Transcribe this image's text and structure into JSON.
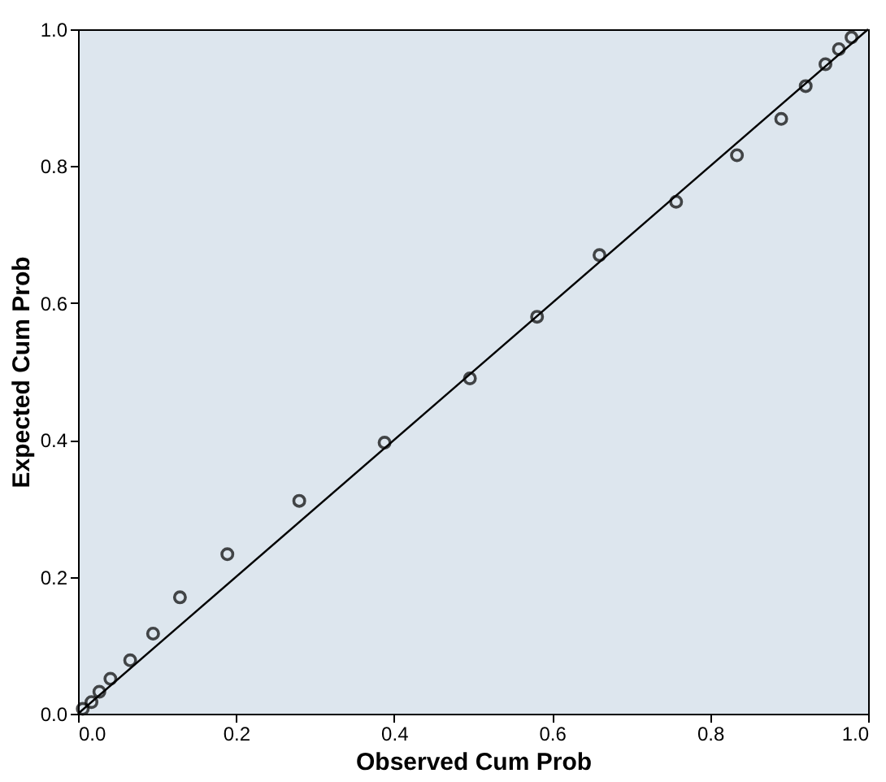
{
  "chart_data": {
    "type": "scatter",
    "xlabel": "Observed Cum Prob",
    "ylabel": "Expected Cum Prob",
    "marker": "circle",
    "grid": false,
    "xlim": [
      0,
      1
    ],
    "ylim": [
      0,
      1
    ],
    "xticks": [
      {
        "value": 0,
        "label": "0.0"
      },
      {
        "value": 0.2,
        "label": "0.2"
      },
      {
        "value": 0.4,
        "label": "0.4"
      },
      {
        "value": 0.6,
        "label": "0.6"
      },
      {
        "value": 0.8,
        "label": "0.8"
      },
      {
        "value": 1,
        "label": "1.0"
      }
    ],
    "yticks": [
      {
        "value": 0,
        "label": "0.0"
      },
      {
        "value": 0.2,
        "label": "0.2"
      },
      {
        "value": 0.4,
        "label": "0.4"
      },
      {
        "value": 0.6,
        "label": "0.6"
      },
      {
        "value": 0.8,
        "label": "0.8"
      },
      {
        "value": 1,
        "label": "1.0"
      }
    ],
    "series": [
      {
        "color": "#000000",
        "x": [
          0.006,
          0.017,
          0.027,
          0.041,
          0.066,
          0.095,
          0.129,
          0.189,
          0.28,
          0.388,
          0.496,
          0.581,
          0.66,
          0.757,
          0.834,
          0.89,
          0.921,
          0.946,
          0.963,
          0.979
        ],
        "values": [
          0.007,
          0.017,
          0.032,
          0.051,
          0.078,
          0.117,
          0.17,
          0.233,
          0.311,
          0.396,
          0.49,
          0.58,
          0.67,
          0.748,
          0.816,
          0.869,
          0.917,
          0.949,
          0.971,
          0.988
        ]
      },
      {
        "type": "line",
        "color": "#000000",
        "x": [
          0,
          1
        ],
        "values": [
          0,
          1
        ],
        "marker": "none"
      }
    ]
  }
}
